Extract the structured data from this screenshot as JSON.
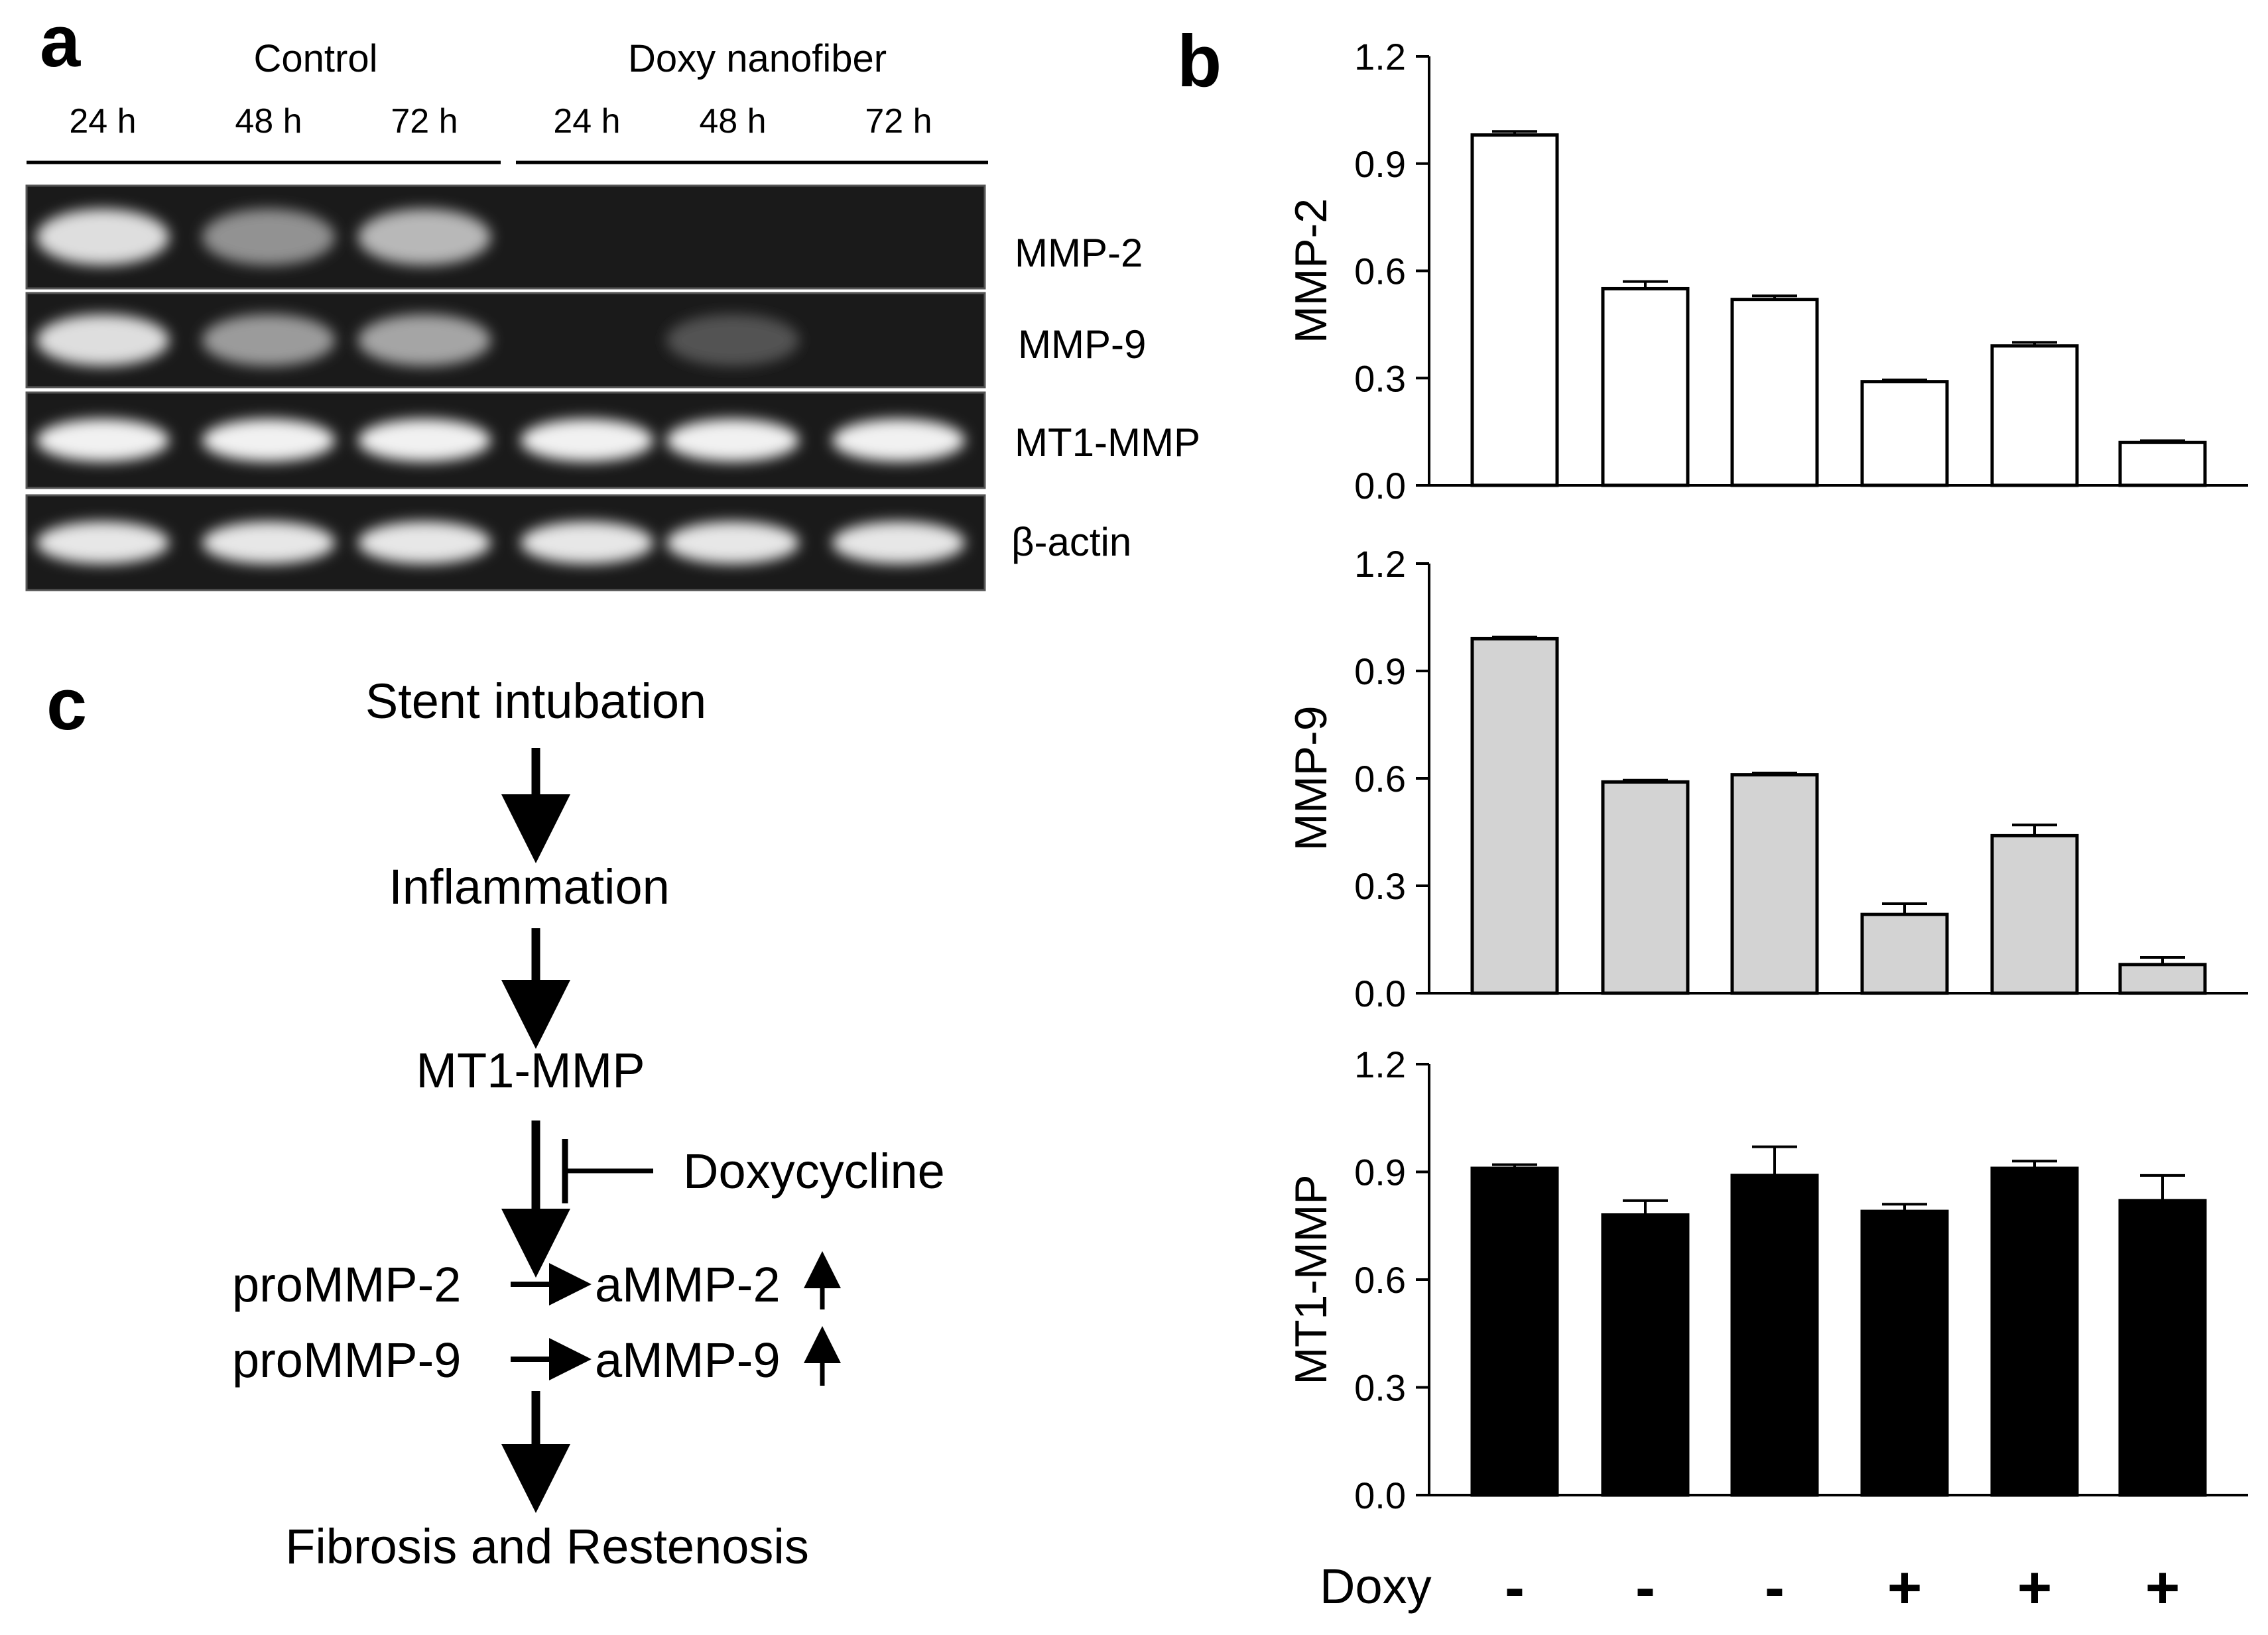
{
  "panel_a": {
    "label": "a",
    "groups": [
      {
        "name": "Control",
        "times": [
          "24 h",
          "48 h",
          "72 h"
        ]
      },
      {
        "name": "Doxy nanofiber",
        "times": [
          "24 h",
          "48 h",
          "72 h"
        ]
      }
    ],
    "lanes": [
      {
        "label": "MMP-2",
        "intensity": [
          0.85,
          0.45,
          0.65,
          0.0,
          0.0,
          0.0
        ]
      },
      {
        "label": "MMP-9",
        "intensity": [
          0.85,
          0.5,
          0.55,
          0.0,
          0.12,
          0.0
        ]
      },
      {
        "label": "MT1-MMP",
        "intensity": [
          0.95,
          0.95,
          0.95,
          0.95,
          0.95,
          0.95
        ]
      },
      {
        "label": "β-actin",
        "intensity": [
          0.9,
          0.9,
          0.9,
          0.9,
          0.9,
          0.9
        ]
      }
    ]
  },
  "panel_b": {
    "label": "b"
  },
  "chart_data": [
    {
      "type": "bar",
      "ylabel": "MMP-2",
      "ylim": [
        0,
        1.2
      ],
      "yticks": [
        "0.0",
        "0.3",
        "0.6",
        "0.9",
        "1.2"
      ],
      "categories": [
        "-",
        "-",
        "-",
        "+",
        "+",
        "+"
      ],
      "xlabel": "Doxy",
      "values": [
        0.98,
        0.55,
        0.52,
        0.29,
        0.39,
        0.12
      ],
      "errors": [
        0.01,
        0.02,
        0.01,
        0.005,
        0.01,
        0.005
      ],
      "color": "#ffffff"
    },
    {
      "type": "bar",
      "ylabel": "MMP-9",
      "ylim": [
        0,
        1.2
      ],
      "yticks": [
        "0.0",
        "0.3",
        "0.6",
        "0.9",
        "1.2"
      ],
      "categories": [
        "-",
        "-",
        "-",
        "+",
        "+",
        "+"
      ],
      "xlabel": "Doxy",
      "values": [
        0.99,
        0.59,
        0.61,
        0.22,
        0.44,
        0.08
      ],
      "errors": [
        0.005,
        0.005,
        0.005,
        0.03,
        0.03,
        0.02
      ],
      "color": "#d3d3d3"
    },
    {
      "type": "bar",
      "ylabel": "MT1-MMP",
      "ylim": [
        0,
        1.2
      ],
      "yticks": [
        "0.0",
        "0.3",
        "0.6",
        "0.9",
        "1.2"
      ],
      "categories": [
        "-",
        "-",
        "-",
        "+",
        "+",
        "+"
      ],
      "xlabel": "Doxy",
      "values": [
        0.91,
        0.78,
        0.89,
        0.79,
        0.91,
        0.82
      ],
      "errors": [
        0.01,
        0.04,
        0.08,
        0.02,
        0.02,
        0.07
      ],
      "color": "#000000"
    }
  ],
  "panel_c": {
    "label": "c",
    "steps": [
      "Stent intubation",
      "Inflammation",
      "MT1-MMP"
    ],
    "inhibitor": "Doxycycline",
    "conversions": [
      {
        "from": "proMMP-2",
        "to": "aMMP-2"
      },
      {
        "from": "proMMP-9",
        "to": "aMMP-9"
      }
    ],
    "outcome": "Fibrosis and Restenosis"
  }
}
